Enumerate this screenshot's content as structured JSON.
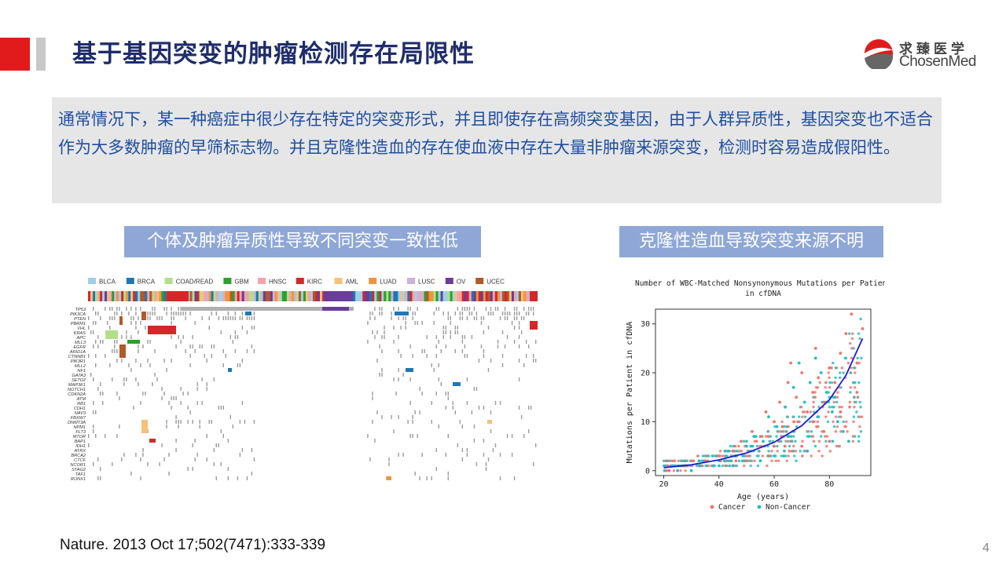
{
  "slide": {
    "title": "基于基因突变的肿瘤检测存在局限性",
    "page_number": "4",
    "citation": "Nature. 2013 Oct 17;502(7471):333-339",
    "accent_color": "#e11b1b",
    "title_color": "#1f2d6b"
  },
  "logo": {
    "cn": "求臻医学",
    "en": "ChosenMed"
  },
  "intro": {
    "text": "通常情况下，某一种癌症中很少存在特定的突变形式，并且即使存在高频突变基因，由于人群异质性，基因突变也不适合作为大多数肿瘤的早筛标志物。并且克隆性造血的存在使血液中存在大量非肿瘤来源突变，检测时容易造成假阳性。"
  },
  "tags": {
    "left": "个体及肿瘤异质性导致不同突变一致性低",
    "right": "克隆性造血导致突变来源不明"
  },
  "heatmap": {
    "legend": [
      {
        "label": "BLCA",
        "color": "#9fd0e6"
      },
      {
        "label": "BRCA",
        "color": "#1f77b4"
      },
      {
        "label": "COAD/READ",
        "color": "#b2df8a"
      },
      {
        "label": "GBM",
        "color": "#2ca02c"
      },
      {
        "label": "HNSC",
        "color": "#f4a3a8"
      },
      {
        "label": "KIRC",
        "color": "#d62728"
      },
      {
        "label": "AML",
        "color": "#f7c07a"
      },
      {
        "label": "LUAD",
        "color": "#f0953a"
      },
      {
        "label": "LUSC",
        "color": "#c9b3d9"
      },
      {
        "label": "OV",
        "color": "#6a3d9a"
      },
      {
        "label": "UCEC",
        "color": "#b15928"
      }
    ],
    "genes": [
      "TP53",
      "PIK3CA",
      "PTEN",
      "PBRM1",
      "VHL",
      "KRAS",
      "APC",
      "MLL3",
      "EGFR",
      "ARID1A",
      "CTNNB1",
      "PIK3R1",
      "MLL2",
      "NF1",
      "GATA3",
      "SETD2",
      "MAP3K1",
      "NOTCH1",
      "CDKN2A",
      "ATM",
      "RB1",
      "CDH1",
      "NAV3",
      "FBXW7",
      "DNMT3A",
      "NPM1",
      "FLT3",
      "MTOR",
      "BAP1",
      "IDH1",
      "ATRX",
      "BRCA2",
      "CTCF",
      "NCOR1",
      "STAG2",
      "TAF1",
      "RUNX1"
    ]
  },
  "chart_data": {
    "type": "scatter",
    "title": "Number of WBC-Matched Nonsynonymous Mutations per Patient in cfDNA",
    "xlabel": "Age (years)",
    "ylabel": "Mutations per Patient in cfDNA",
    "xlim": [
      17,
      95
    ],
    "ylim": [
      -1,
      33
    ],
    "xticks": [
      20,
      40,
      60,
      80
    ],
    "yticks": [
      0,
      10,
      20,
      30
    ],
    "legend_position": "bottom",
    "series": [
      {
        "name": "Cancer",
        "color": "#f2736b",
        "points": [
          [
            22,
            0
          ],
          [
            28,
            1
          ],
          [
            35,
            2
          ],
          [
            40,
            3
          ],
          [
            45,
            4
          ],
          [
            48,
            6
          ],
          [
            52,
            8
          ],
          [
            55,
            7
          ],
          [
            57,
            12
          ],
          [
            60,
            10
          ],
          [
            62,
            14
          ],
          [
            63,
            9
          ],
          [
            65,
            18
          ],
          [
            66,
            22
          ],
          [
            68,
            15
          ],
          [
            70,
            20
          ],
          [
            72,
            12
          ],
          [
            74,
            16
          ],
          [
            75,
            25
          ],
          [
            76,
            19
          ],
          [
            78,
            14
          ],
          [
            80,
            21
          ],
          [
            82,
            18
          ],
          [
            84,
            24
          ],
          [
            86,
            28
          ],
          [
            88,
            32
          ],
          [
            90,
            22
          ],
          [
            92,
            29
          ],
          [
            70,
            5
          ],
          [
            58,
            3
          ],
          [
            66,
            6
          ],
          [
            78,
            8
          ],
          [
            84,
            12
          ],
          [
            90,
            16
          ],
          [
            60,
            5
          ],
          [
            50,
            2
          ],
          [
            74,
            10
          ],
          [
            80,
            6
          ]
        ]
      },
      {
        "name": "Non-Cancer",
        "color": "#1fbfc3",
        "points": [
          [
            25,
            0
          ],
          [
            30,
            0
          ],
          [
            33,
            1
          ],
          [
            38,
            1
          ],
          [
            42,
            2
          ],
          [
            46,
            3
          ],
          [
            50,
            5
          ],
          [
            53,
            7
          ],
          [
            56,
            6
          ],
          [
            58,
            11
          ],
          [
            61,
            9
          ],
          [
            64,
            13
          ],
          [
            67,
            17
          ],
          [
            69,
            22
          ],
          [
            71,
            14
          ],
          [
            73,
            18
          ],
          [
            75,
            23
          ],
          [
            77,
            20
          ],
          [
            79,
            16
          ],
          [
            81,
            12
          ],
          [
            83,
            10
          ],
          [
            85,
            8
          ],
          [
            87,
            6
          ],
          [
            60,
            3
          ],
          [
            55,
            2
          ],
          [
            72,
            4
          ],
          [
            45,
            1
          ],
          [
            65,
            7
          ],
          [
            76,
            11
          ],
          [
            82,
            15
          ]
        ]
      }
    ],
    "fit_curve": {
      "name": "trend",
      "color": "#1a1adb",
      "points": [
        [
          20,
          0.6
        ],
        [
          30,
          1.2
        ],
        [
          40,
          2.2
        ],
        [
          50,
          3.6
        ],
        [
          60,
          5.8
        ],
        [
          70,
          9.2
        ],
        [
          80,
          14.5
        ],
        [
          86,
          19.5
        ],
        [
          92,
          27
        ]
      ]
    }
  }
}
